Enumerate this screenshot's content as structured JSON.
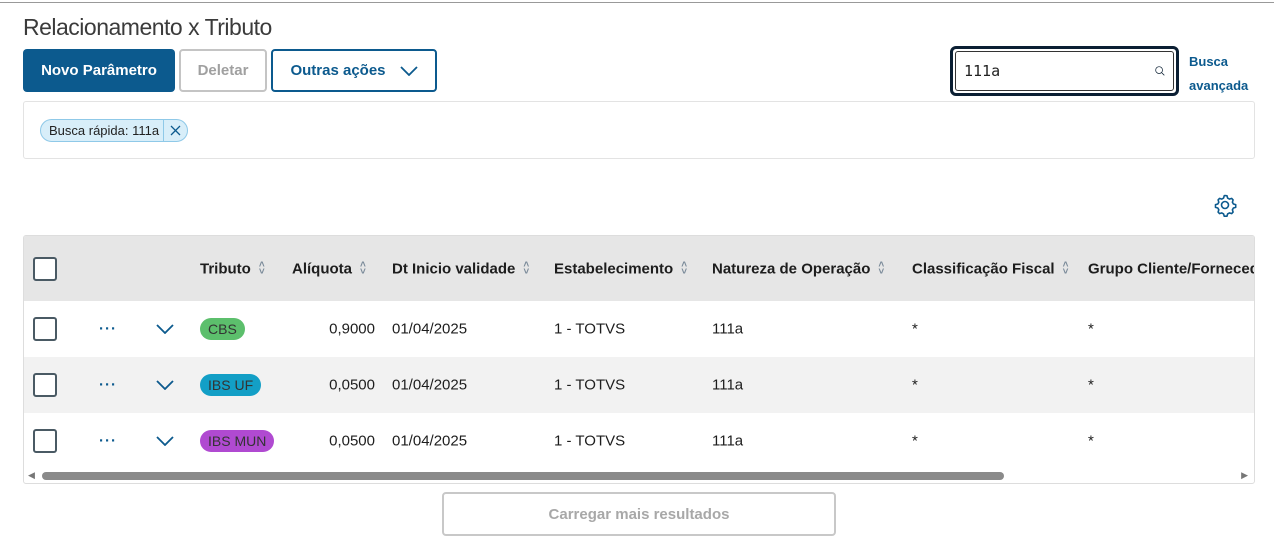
{
  "page": {
    "title": "Relacionamento x Tributo"
  },
  "toolbar": {
    "new_label": "Novo Parâmetro",
    "delete_label": "Deletar",
    "more_label": "Outras ações"
  },
  "search": {
    "value": "111a",
    "advanced_line1": "Busca",
    "advanced_line2": "avançada"
  },
  "filters": {
    "chip_label": "Busca rápida: 111a"
  },
  "table": {
    "columns": [
      "Tributo",
      "Alíquota",
      "Dt Inicio validade",
      "Estabelecimento",
      "Natureza de Operação",
      "Classificação Fiscal",
      "Grupo Cliente/Fornecedor"
    ],
    "rows": [
      {
        "tributo": "CBS",
        "tag_color": "#5cbf6c",
        "aliquota": "0,9000",
        "dt": "01/04/2025",
        "estab": "1 - TOTVS",
        "natureza": "111a",
        "classif": "*",
        "grupo": "*"
      },
      {
        "tributo": "IBS UF",
        "tag_color": "#139fc6",
        "aliquota": "0,0500",
        "dt": "01/04/2025",
        "estab": "1 - TOTVS",
        "natureza": "111a",
        "classif": "*",
        "grupo": "*"
      },
      {
        "tributo": "IBS MUN",
        "tag_color": "#b04ad1",
        "aliquota": "0,0500",
        "dt": "01/04/2025",
        "estab": "1 - TOTVS",
        "natureza": "111a",
        "classif": "*",
        "grupo": "*"
      }
    ]
  },
  "footer": {
    "load_more_label": "Carregar mais resultados"
  },
  "colors": {
    "primary": "#0c5a8e",
    "header_bg": "#e6e6e6",
    "row_alt": "#f2f2f2"
  }
}
